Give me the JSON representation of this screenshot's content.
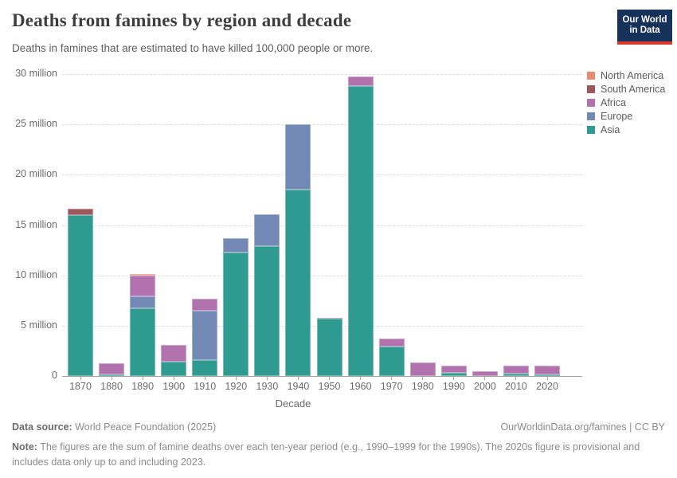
{
  "logo": {
    "line1": "Our World",
    "line2": "in Data",
    "bg_color": "#16325a",
    "accent_color": "#d93a2b"
  },
  "chart_data": {
    "type": "bar",
    "stacked": true,
    "title": "Deaths from famines by region and decade",
    "subtitle": "Deaths in famines that are estimated to have killed 100,000 people or more.",
    "xlabel": "Decade",
    "unit": "million deaths",
    "ylim": [
      0,
      30
    ],
    "grid": true,
    "legend_position": "right",
    "yticks": [
      {
        "value": 0,
        "label": "0"
      },
      {
        "value": 5,
        "label": "5 million"
      },
      {
        "value": 10,
        "label": "10 million"
      },
      {
        "value": 15,
        "label": "15 million"
      },
      {
        "value": 20,
        "label": "20 million"
      },
      {
        "value": 25,
        "label": "25 million"
      },
      {
        "value": 30,
        "label": "30 million"
      }
    ],
    "categories": [
      "1870",
      "1880",
      "1890",
      "1900",
      "1910",
      "1920",
      "1930",
      "1940",
      "1950",
      "1960",
      "1970",
      "1980",
      "1990",
      "2000",
      "2010",
      "2020"
    ],
    "series": [
      {
        "name": "Asia",
        "color": "#2f9a8f",
        "values": [
          16.0,
          0.15,
          6.7,
          1.45,
          1.6,
          12.3,
          12.9,
          18.5,
          5.7,
          28.8,
          2.9,
          0,
          0.3,
          0,
          0.2,
          0.15
        ]
      },
      {
        "name": "Europe",
        "color": "#7389b5",
        "values": [
          0,
          0,
          1.2,
          0,
          4.9,
          1.4,
          3.2,
          6.5,
          0,
          0,
          0,
          0,
          0,
          0,
          0,
          0
        ]
      },
      {
        "name": "Africa",
        "color": "#b172ae",
        "values": [
          0,
          1.15,
          2.05,
          1.6,
          1.2,
          0,
          0,
          0,
          0.1,
          0.95,
          0.8,
          1.35,
          0.7,
          0.45,
          0.85,
          0.85
        ]
      },
      {
        "name": "South America",
        "color": "#9e575c",
        "values": [
          0.6,
          0,
          0,
          0,
          0,
          0,
          0,
          0,
          0,
          0,
          0,
          0,
          0,
          0,
          0,
          0
        ]
      },
      {
        "name": "North America",
        "color": "#e58b72",
        "values": [
          0,
          0,
          0.2,
          0,
          0,
          0,
          0,
          0,
          0,
          0,
          0,
          0,
          0,
          0,
          0,
          0
        ]
      }
    ],
    "legend_order": [
      "North America",
      "South America",
      "Africa",
      "Europe",
      "Asia"
    ]
  },
  "footer": {
    "datasource_label": "Data source:",
    "datasource_value": "World Peace Foundation (2025)",
    "link": "OurWorldinData.org/famines | CC BY",
    "note_label": "Note:",
    "note_text": "The figures are the sum of famine deaths over each ten-year period (e.g., 1990–1999 for the 1990s). The 2020s figure is provisional and includes data only up to and including 2023."
  }
}
